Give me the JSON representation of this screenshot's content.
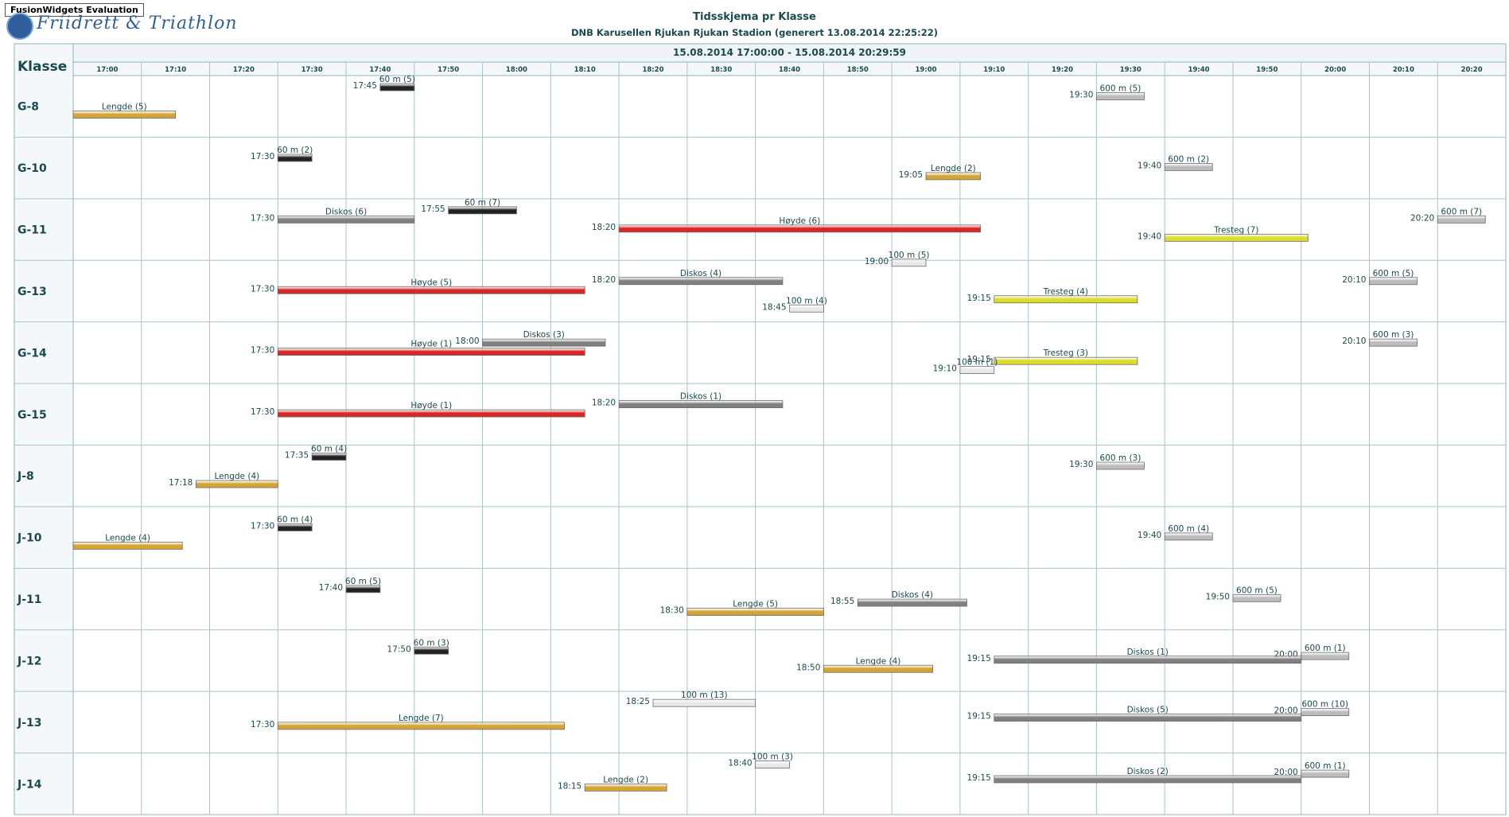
{
  "badge": "FusionWidgets Evaluation",
  "logo_text": "Friidrett & Triathlon",
  "title": "Tidsskjema pr Klasse",
  "subtitle": "DNB Karusellen Rjukan Rjukan Stadion (generert 13.08.2014 22:25:22)",
  "colors": {
    "Lengde": "#d4a534",
    "60 m": "#222222",
    "600 m": "#bcbcbc",
    "100 m": "#e8e8e8",
    "Diskos": "#808080",
    "Høyde": "#d92626",
    "Tresteg": "#dcdc2a"
  },
  "chart_data": {
    "type": "gantt",
    "range_label": "15.08.2014 17:00:00 - 15.08.2014 20:29:59",
    "row_header": "Klasse",
    "x_range": [
      "17:00",
      "20:30"
    ],
    "x_ticks": [
      "17:00",
      "17:10",
      "17:20",
      "17:30",
      "17:40",
      "17:50",
      "18:00",
      "18:10",
      "18:20",
      "18:30",
      "18:40",
      "18:50",
      "19:00",
      "19:10",
      "19:20",
      "19:30",
      "19:40",
      "19:50",
      "20:00",
      "20:10",
      "20:20"
    ],
    "rows": [
      "G-8",
      "G-10",
      "G-11",
      "G-13",
      "G-14",
      "G-15",
      "J-8",
      "J-10",
      "J-11",
      "J-12",
      "J-13",
      "J-14"
    ],
    "tasks": [
      {
        "row": "G-8",
        "label": "60 m (5)",
        "event": "60 m",
        "start": "17:45",
        "end": "17:50",
        "lane": 0,
        "show_start": "17:45"
      },
      {
        "row": "G-8",
        "label": "600 m (5)",
        "event": "600 m",
        "start": "19:30",
        "end": "19:37",
        "lane": 1,
        "show_start": "19:30"
      },
      {
        "row": "G-8",
        "label": "Lengde (5)",
        "event": "Lengde",
        "start": "17:00",
        "end": "17:15",
        "lane": 3,
        "show_start": ""
      },
      {
        "row": "G-10",
        "label": "60 m (2)",
        "event": "60 m",
        "start": "17:30",
        "end": "17:35",
        "lane": 1,
        "show_start": "17:30"
      },
      {
        "row": "G-10",
        "label": "600 m (2)",
        "event": "600 m",
        "start": "19:40",
        "end": "19:47",
        "lane": 2,
        "show_start": "19:40"
      },
      {
        "row": "G-10",
        "label": "Lengde (2)",
        "event": "Lengde",
        "start": "19:05",
        "end": "19:13",
        "lane": 3,
        "show_start": "19:05"
      },
      {
        "row": "G-11",
        "label": "60 m (7)",
        "event": "60 m",
        "start": "17:55",
        "end": "18:05",
        "lane": 0,
        "show_start": "17:55"
      },
      {
        "row": "G-11",
        "label": "Diskos (6)",
        "event": "Diskos",
        "start": "17:30",
        "end": "17:50",
        "lane": 1,
        "show_start": "17:30"
      },
      {
        "row": "G-11",
        "label": "600 m (7)",
        "event": "600 m",
        "start": "20:20",
        "end": "20:27",
        "lane": 1,
        "show_start": "20:20"
      },
      {
        "row": "G-11",
        "label": "Høyde (6)",
        "event": "Høyde",
        "start": "18:20",
        "end": "19:13",
        "lane": 2,
        "show_start": "18:20"
      },
      {
        "row": "G-11",
        "label": "Tresteg (7)",
        "event": "Tresteg",
        "start": "19:40",
        "end": "20:01",
        "lane": 3,
        "show_start": "19:40"
      },
      {
        "row": "G-13",
        "label": "100 m (5)",
        "event": "100 m",
        "start": "19:00",
        "end": "19:05",
        "lane": -1,
        "show_start": "19:00"
      },
      {
        "row": "G-13",
        "label": "Diskos (4)",
        "event": "Diskos",
        "start": "18:20",
        "end": "18:44",
        "lane": 1,
        "show_start": "18:20"
      },
      {
        "row": "G-13",
        "label": "600 m (5)",
        "event": "600 m",
        "start": "20:10",
        "end": "20:17",
        "lane": 1,
        "show_start": "20:10"
      },
      {
        "row": "G-13",
        "label": "Høyde (5)",
        "event": "Høyde",
        "start": "17:30",
        "end": "18:15",
        "lane": 2,
        "show_start": "17:30"
      },
      {
        "row": "G-13",
        "label": "Tresteg (4)",
        "event": "Tresteg",
        "start": "19:15",
        "end": "19:36",
        "lane": 3,
        "show_start": "19:15"
      },
      {
        "row": "G-13",
        "label": "100 m (4)",
        "event": "100 m",
        "start": "18:45",
        "end": "18:50",
        "lane": 4,
        "show_start": "18:45"
      },
      {
        "row": "G-14",
        "label": "600 m (3)",
        "event": "600 m",
        "start": "20:10",
        "end": "20:17",
        "lane": 1,
        "show_start": "20:10"
      },
      {
        "row": "G-14",
        "label": "Diskos (3)",
        "event": "Diskos",
        "start": "18:00",
        "end": "18:18",
        "lane": 1,
        "show_start": "18:00"
      },
      {
        "row": "G-14",
        "label": "Høyde (1)",
        "event": "Høyde",
        "start": "17:30",
        "end": "18:15",
        "lane": 2,
        "show_start": "17:30"
      },
      {
        "row": "G-14",
        "label": "Tresteg (3)",
        "event": "Tresteg",
        "start": "19:15",
        "end": "19:36",
        "lane": 3,
        "show_start": "19:15"
      },
      {
        "row": "G-14",
        "label": "100 m (1)",
        "event": "100 m",
        "start": "19:10",
        "end": "19:15",
        "lane": 4,
        "show_start": "19:10"
      },
      {
        "row": "G-15",
        "label": "Diskos (1)",
        "event": "Diskos",
        "start": "18:20",
        "end": "18:44",
        "lane": 1,
        "show_start": "18:20"
      },
      {
        "row": "G-15",
        "label": "Høyde (1)",
        "event": "Høyde",
        "start": "17:30",
        "end": "18:15",
        "lane": 2,
        "show_start": "17:30"
      },
      {
        "row": "J-8",
        "label": "60 m (4)",
        "event": "60 m",
        "start": "17:35",
        "end": "17:40",
        "lane": 0,
        "show_start": "17:35"
      },
      {
        "row": "J-8",
        "label": "600 m (3)",
        "event": "600 m",
        "start": "19:30",
        "end": "19:37",
        "lane": 1,
        "show_start": "19:30"
      },
      {
        "row": "J-8",
        "label": "Lengde (4)",
        "event": "Lengde",
        "start": "17:18",
        "end": "17:30",
        "lane": 3,
        "show_start": "17:18"
      },
      {
        "row": "J-10",
        "label": "60 m (4)",
        "event": "60 m",
        "start": "17:30",
        "end": "17:35",
        "lane": 1,
        "show_start": "17:30"
      },
      {
        "row": "J-10",
        "label": "600 m (4)",
        "event": "600 m",
        "start": "19:40",
        "end": "19:47",
        "lane": 2,
        "show_start": "19:40"
      },
      {
        "row": "J-10",
        "label": "Lengde (4)",
        "event": "Lengde",
        "start": "17:00",
        "end": "17:16",
        "lane": 3,
        "show_start": ""
      },
      {
        "row": "J-11",
        "label": "60 m (5)",
        "event": "60 m",
        "start": "17:40",
        "end": "17:45",
        "lane": 1,
        "show_start": "17:40"
      },
      {
        "row": "J-11",
        "label": "600 m (5)",
        "event": "600 m",
        "start": "19:50",
        "end": "19:57",
        "lane": 2,
        "show_start": "19:50"
      },
      {
        "row": "J-11",
        "label": "Diskos (4)",
        "event": "Diskos",
        "start": "18:55",
        "end": "19:11",
        "lane": 2.5,
        "show_start": "18:55"
      },
      {
        "row": "J-11",
        "label": "Lengde (5)",
        "event": "Lengde",
        "start": "18:30",
        "end": "18:50",
        "lane": 3.5,
        "show_start": "18:30"
      },
      {
        "row": "J-12",
        "label": "60 m (3)",
        "event": "60 m",
        "start": "17:50",
        "end": "17:55",
        "lane": 1,
        "show_start": "17:50"
      },
      {
        "row": "J-12",
        "label": "600 m (1)",
        "event": "600 m",
        "start": "20:00",
        "end": "20:07",
        "lane": 1.6,
        "show_start": "20:00"
      },
      {
        "row": "J-12",
        "label": "Diskos (1)",
        "event": "Diskos",
        "start": "19:15",
        "end": "20:00",
        "lane": 2,
        "show_start": "19:15"
      },
      {
        "row": "J-12",
        "label": "Lengde (4)",
        "event": "Lengde",
        "start": "18:50",
        "end": "19:06",
        "lane": 3,
        "show_start": "18:50"
      },
      {
        "row": "J-13",
        "label": "100 m (13)",
        "event": "100 m",
        "start": "18:25",
        "end": "18:40",
        "lane": 0,
        "show_start": "18:25"
      },
      {
        "row": "J-13",
        "label": "600 m (10)",
        "event": "600 m",
        "start": "20:00",
        "end": "20:07",
        "lane": 1,
        "show_start": "20:00"
      },
      {
        "row": "J-13",
        "label": "Diskos (5)",
        "event": "Diskos",
        "start": "19:15",
        "end": "20:00",
        "lane": 1.6,
        "show_start": "19:15"
      },
      {
        "row": "J-13",
        "label": "Lengde (7)",
        "event": "Lengde",
        "start": "17:30",
        "end": "18:12",
        "lane": 2.5,
        "show_start": "17:30"
      },
      {
        "row": "J-14",
        "label": "100 m (3)",
        "event": "100 m",
        "start": "18:40",
        "end": "18:45",
        "lane": 0,
        "show_start": "18:40"
      },
      {
        "row": "J-14",
        "label": "600 m (1)",
        "event": "600 m",
        "start": "20:00",
        "end": "20:07",
        "lane": 1,
        "show_start": "20:00"
      },
      {
        "row": "J-14",
        "label": "Diskos (2)",
        "event": "Diskos",
        "start": "19:15",
        "end": "20:00",
        "lane": 1.6,
        "show_start": "19:15"
      },
      {
        "row": "J-14",
        "label": "Lengde (2)",
        "event": "Lengde",
        "start": "18:15",
        "end": "18:27",
        "lane": 2.5,
        "show_start": "18:15"
      }
    ]
  }
}
